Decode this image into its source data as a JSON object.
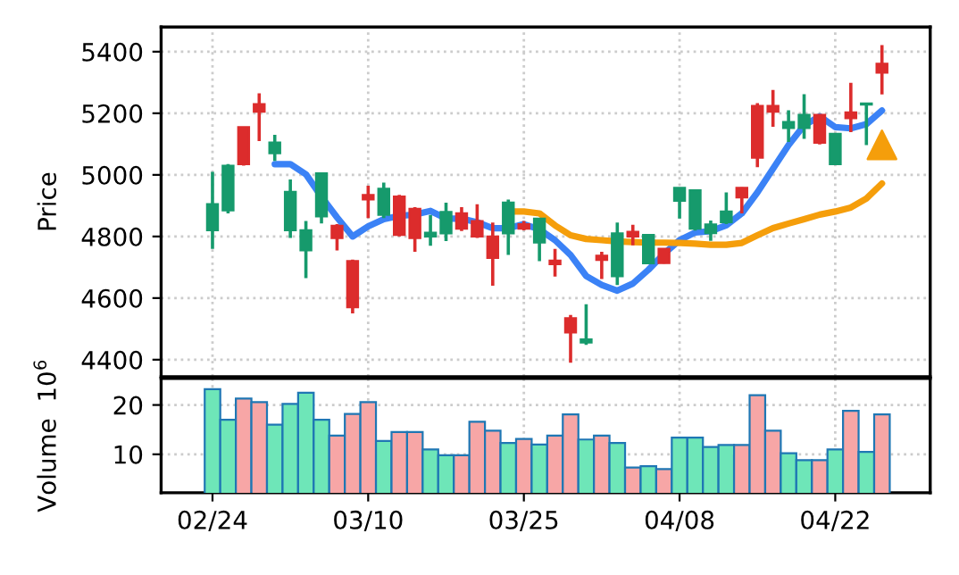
{
  "chart_data": [
    {
      "type": "candlestick",
      "ylabel": "Price",
      "categories": [
        null,
        null,
        null,
        null,
        null,
        null,
        null,
        null,
        null,
        null,
        null,
        null,
        null,
        null,
        null,
        null,
        null,
        null,
        null,
        null,
        null,
        null,
        null,
        null,
        null,
        null,
        null,
        null,
        null,
        null,
        null,
        null,
        null,
        null,
        null,
        null,
        null,
        null,
        null,
        null,
        null,
        null,
        null,
        null
      ],
      "ohlc": [
        [
          4820,
          5010,
          4760,
          4905
        ],
        [
          4885,
          5035,
          4875,
          5030
        ],
        [
          5155,
          5155,
          5030,
          5035
        ],
        [
          5230,
          5265,
          5110,
          5205
        ],
        [
          5070,
          5130,
          5045,
          5105
        ],
        [
          4820,
          4985,
          4795,
          4945
        ],
        [
          4755,
          4850,
          4665,
          4820
        ],
        [
          4865,
          5005,
          4842,
          5005
        ],
        [
          4835,
          4840,
          4755,
          4795
        ],
        [
          4720,
          4725,
          4550,
          4570
        ],
        [
          4935,
          4965,
          4860,
          4920
        ],
        [
          4870,
          4975,
          4860,
          4955
        ],
        [
          4930,
          4935,
          4800,
          4805
        ],
        [
          4890,
          4895,
          4750,
          4795
        ],
        [
          4800,
          4870,
          4770,
          4812
        ],
        [
          4810,
          4910,
          4785,
          4880
        ],
        [
          4875,
          4895,
          4818,
          4825
        ],
        [
          4850,
          4905,
          4795,
          4800
        ],
        [
          4800,
          4845,
          4640,
          4730
        ],
        [
          4810,
          4920,
          4740,
          4910
        ],
        [
          4840,
          4850,
          4820,
          4825
        ],
        [
          4780,
          4860,
          4720,
          4858
        ],
        [
          4722,
          4760,
          4670,
          4710
        ],
        [
          4535,
          4545,
          4390,
          4488
        ],
        [
          4456,
          4580,
          4448,
          4466
        ],
        [
          4738,
          4750,
          4662,
          4724
        ],
        [
          4671,
          4845,
          4642,
          4810
        ],
        [
          4815,
          4838,
          4771,
          4800
        ],
        [
          4713,
          4808,
          4713,
          4805
        ],
        [
          4760,
          4762,
          4712,
          4714
        ],
        [
          4916,
          4958,
          4858,
          4958
        ],
        [
          4825,
          4950,
          4819,
          4950
        ],
        [
          4811,
          4852,
          4786,
          4839
        ],
        [
          4846,
          4943,
          4840,
          4881
        ],
        [
          4958,
          4960,
          4875,
          4927
        ],
        [
          5224,
          5233,
          5025,
          5056
        ],
        [
          5224,
          5276,
          5156,
          5205
        ],
        [
          5152,
          5210,
          5107,
          5172
        ],
        [
          5152,
          5262,
          5117,
          5195
        ],
        [
          5195,
          5197,
          5099,
          5104
        ],
        [
          5035,
          5135,
          5033,
          5133
        ],
        [
          5203,
          5299,
          5139,
          5184
        ],
        [
          5228,
          5233,
          5097,
          5232
        ],
        [
          5361,
          5421,
          5261,
          5332
        ]
      ],
      "colors": [
        "#169a6c",
        "#169a6c",
        "#dc2c2c",
        "#dc2c2c",
        "#169a6c",
        "#169a6c",
        "#169a6c",
        "#169a6c",
        "#dc2c2c",
        "#dc2c2c",
        "#dc2c2c",
        "#169a6c",
        "#dc2c2c",
        "#dc2c2c",
        "#169a6c",
        "#169a6c",
        "#dc2c2c",
        "#dc2c2c",
        "#dc2c2c",
        "#169a6c",
        "#dc2c2c",
        "#169a6c",
        "#dc2c2c",
        "#dc2c2c",
        "#169a6c",
        "#dc2c2c",
        "#169a6c",
        "#dc2c2c",
        "#169a6c",
        "#dc2c2c",
        "#169a6c",
        "#169a6c",
        "#169a6c",
        "#169a6c",
        "#dc2c2c",
        "#dc2c2c",
        "#dc2c2c",
        "#169a6c",
        "#169a6c",
        "#dc2c2c",
        "#169a6c",
        "#dc2c2c",
        "#169a6c",
        "#dc2c2c"
      ],
      "series": [
        {
          "type": "line",
          "color": "#3b82f6",
          "values": [
            null,
            null,
            null,
            null,
            5035,
            5035,
            5002,
            4929,
            4862,
            4800,
            4833,
            4856,
            4867,
            4871,
            4883,
            4858,
            4858,
            4846,
            4827,
            4827,
            4840,
            4823,
            4788,
            4740,
            4672,
            4643,
            4624,
            4647,
            4692,
            4744,
            4788,
            4813,
            4817,
            4836,
            4875,
            4943,
            5020,
            5097,
            5161,
            5190,
            5155,
            5151,
            5165,
            5209
          ]
        },
        {
          "type": "line",
          "color": "#f59e0b",
          "values": [
            null,
            null,
            null,
            null,
            null,
            null,
            null,
            null,
            null,
            null,
            null,
            null,
            null,
            null,
            null,
            null,
            null,
            null,
            null,
            4881,
            4881,
            4875,
            4836,
            4804,
            4792,
            4788,
            4784,
            4782,
            4780,
            4780,
            4779,
            4777,
            4773,
            4773,
            4779,
            4804,
            4827,
            4842,
            4856,
            4871,
            4881,
            4894,
            4923,
            4972
          ]
        },
        {
          "type": "scatter",
          "color": "#f59e0b",
          "marker": "triangle",
          "values": [
            null,
            null,
            null,
            null,
            null,
            null,
            null,
            null,
            null,
            null,
            null,
            null,
            null,
            null,
            null,
            null,
            null,
            null,
            null,
            null,
            null,
            null,
            null,
            null,
            null,
            null,
            null,
            null,
            null,
            null,
            null,
            null,
            null,
            null,
            null,
            null,
            null,
            null,
            null,
            null,
            null,
            null,
            null,
            5097
          ]
        }
      ],
      "ylim": [
        4345,
        5480
      ],
      "yticks": [
        4400,
        4600,
        4800,
        5000,
        5200,
        5400
      ],
      "grid": true,
      "tick_labels": "y"
    },
    {
      "type": "bar",
      "ylabel": "Volume  10$^{6}$",
      "categories": [
        "02/24",
        null,
        null,
        null,
        null,
        null,
        null,
        null,
        null,
        null,
        "03/10",
        null,
        null,
        null,
        null,
        null,
        null,
        null,
        null,
        null,
        "03/25",
        null,
        null,
        null,
        null,
        null,
        null,
        null,
        null,
        null,
        "04/08",
        null,
        null,
        null,
        null,
        null,
        null,
        null,
        null,
        null,
        "04/22",
        null,
        null,
        null
      ],
      "values": [
        23.2,
        17,
        21.3,
        20.6,
        16,
        20.2,
        22.5,
        17,
        13.8,
        18.2,
        20.6,
        12.7,
        14.5,
        14.5,
        11,
        9.8,
        9.8,
        16.6,
        14.8,
        12.3,
        13.1,
        12,
        13.8,
        18.1,
        13,
        13.8,
        12.3,
        7.3,
        7.6,
        7,
        13.4,
        13.4,
        11.5,
        11.9,
        11.9,
        22,
        14.8,
        10.2,
        8.8,
        8.8,
        11,
        18.8,
        10.5,
        18.1
      ],
      "colors": [
        "#6ee6b8",
        "#6ee6b8",
        "#f7a6a6",
        "#f7a6a6",
        "#6ee6b8",
        "#6ee6b8",
        "#6ee6b8",
        "#6ee6b8",
        "#f7a6a6",
        "#f7a6a6",
        "#f7a6a6",
        "#6ee6b8",
        "#f7a6a6",
        "#f7a6a6",
        "#6ee6b8",
        "#6ee6b8",
        "#f7a6a6",
        "#f7a6a6",
        "#f7a6a6",
        "#6ee6b8",
        "#f7a6a6",
        "#6ee6b8",
        "#f7a6a6",
        "#f7a6a6",
        "#6ee6b8",
        "#f7a6a6",
        "#6ee6b8",
        "#f7a6a6",
        "#6ee6b8",
        "#f7a6a6",
        "#6ee6b8",
        "#6ee6b8",
        "#6ee6b8",
        "#6ee6b8",
        "#f7a6a6",
        "#f7a6a6",
        "#f7a6a6",
        "#6ee6b8",
        "#6ee6b8",
        "#f7a6a6",
        "#6ee6b8",
        "#f7a6a6",
        "#6ee6b8",
        "#f7a6a6"
      ],
      "ylim": [
        2.2,
        25.4
      ],
      "yticks": [
        10,
        20
      ],
      "grid": true
    }
  ]
}
